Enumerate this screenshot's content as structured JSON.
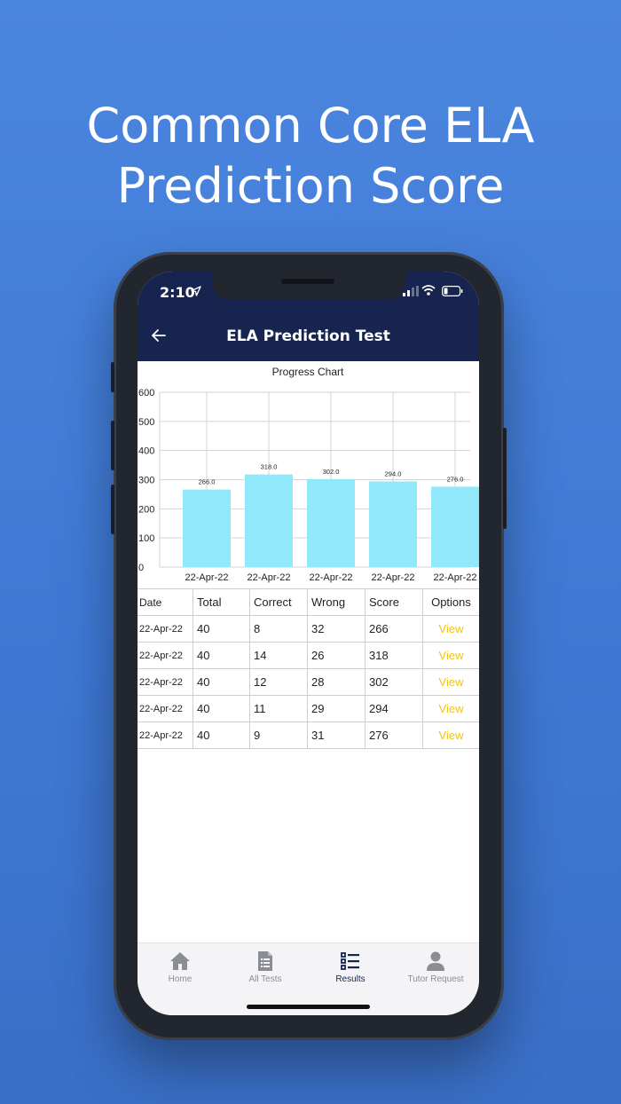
{
  "headline": {
    "line1": "Common Core ELA",
    "line2": "Prediction Score"
  },
  "status_bar": {
    "time": "2:10"
  },
  "app_bar": {
    "title": "ELA Prediction Test"
  },
  "chart_data": {
    "type": "bar",
    "title": "Progress Chart",
    "categories": [
      "22-Apr-22",
      "22-Apr-22",
      "22-Apr-22",
      "22-Apr-22",
      "22-Apr-22"
    ],
    "values": [
      266.0,
      318.0,
      302.0,
      294.0,
      276.0
    ],
    "value_labels": [
      "266.0",
      "318.0",
      "302.0",
      "294.0",
      "276.0"
    ],
    "ylim": [
      0,
      600
    ],
    "yticks": [
      "0",
      "100",
      "200",
      "300",
      "400",
      "500",
      "600"
    ],
    "grid": true,
    "bar_color": "#92e8fb"
  },
  "table": {
    "headers": [
      "Date",
      "Total",
      "Correct",
      "Wrong",
      "Score",
      "Options"
    ],
    "rows": [
      {
        "date": "22-Apr-22",
        "total": "40",
        "correct": "8",
        "wrong": "32",
        "score": "266",
        "option": "View"
      },
      {
        "date": "22-Apr-22",
        "total": "40",
        "correct": "14",
        "wrong": "26",
        "score": "318",
        "option": "View"
      },
      {
        "date": "22-Apr-22",
        "total": "40",
        "correct": "12",
        "wrong": "28",
        "score": "302",
        "option": "View"
      },
      {
        "date": "22-Apr-22",
        "total": "40",
        "correct": "11",
        "wrong": "29",
        "score": "294",
        "option": "View"
      },
      {
        "date": "22-Apr-22",
        "total": "40",
        "correct": "9",
        "wrong": "31",
        "score": "276",
        "option": "View"
      }
    ]
  },
  "tabs": [
    {
      "label": "Home",
      "icon": "home-icon"
    },
    {
      "label": "All Tests",
      "icon": "document-list-icon"
    },
    {
      "label": "Results",
      "icon": "list-icon",
      "active": true
    },
    {
      "label": "Tutor Request",
      "icon": "person-icon"
    }
  ],
  "colors": {
    "background": "#4a85de",
    "navbar": "#16244f",
    "link": "#f0c419",
    "tab_active": "#16244f",
    "tab_inactive": "#8a8d93"
  }
}
